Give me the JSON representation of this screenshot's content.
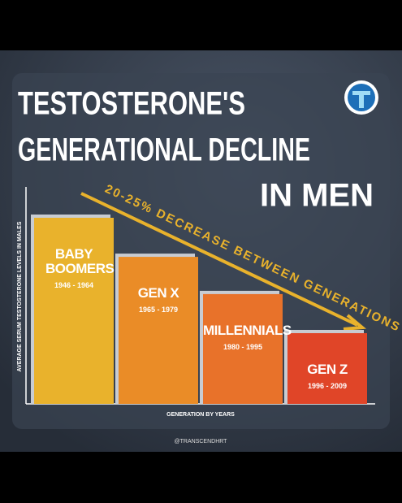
{
  "chart_data": {
    "type": "bar",
    "title_lines": [
      "TESTOSTERONE'S",
      "GENERATIONAL DECLINE",
      "IN MEN"
    ],
    "annotation": "20-25% DECREASE BETWEEN GENERATIONS",
    "y_label": "AVERAGE SERUM TESTOSTERONE LEVELS IN MALES",
    "x_label": "GENERATION BY YEARS",
    "credit": "@TRANSCENDHRT",
    "categories": [
      "BABY BOOMERS",
      "GEN X",
      "MILLENNIALS",
      "GEN Z"
    ],
    "year_ranges": [
      "1946 - 1964",
      "1965 - 1979",
      "1980 - 1995",
      "1996 - 2009"
    ],
    "values": [
      100,
      79,
      59,
      38
    ],
    "colors": [
      "#e9b22c",
      "#ea8c27",
      "#e8722a",
      "#e04528"
    ],
    "ylim": [
      0,
      100
    ]
  }
}
